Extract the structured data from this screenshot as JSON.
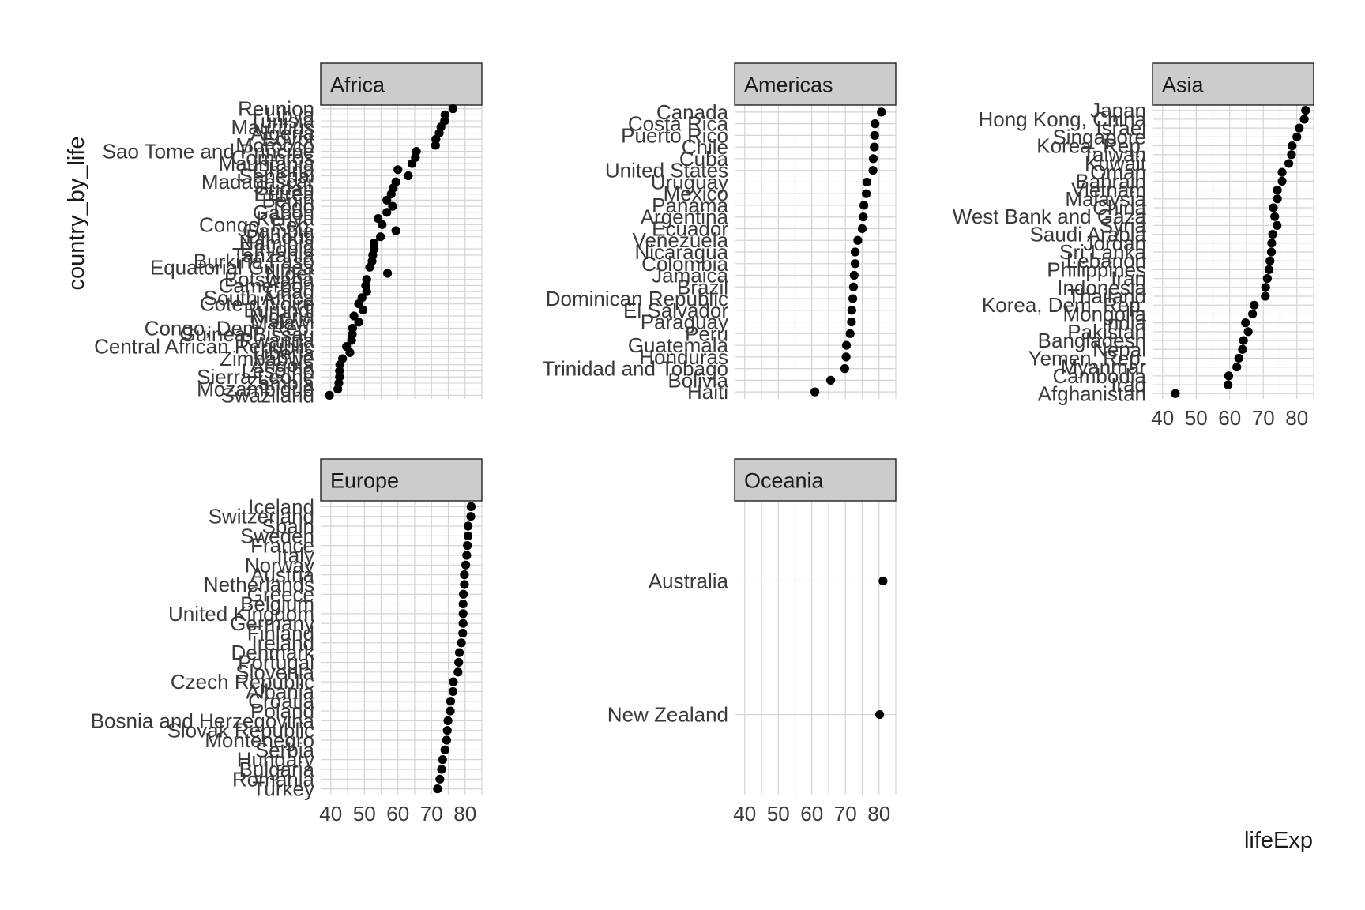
{
  "chart_data": {
    "type": "scatter",
    "facet_by": "continent",
    "ylabel": "country_by_life",
    "xlabel": "lifeExp",
    "xlim": [
      37,
      85
    ],
    "x_ticks": [
      40,
      50,
      60,
      70,
      80
    ],
    "grid": true,
    "panels": [
      {
        "name": "Africa",
        "points": [
          {
            "country": "Reunion",
            "lifeExp": 76.4
          },
          {
            "country": "Libya",
            "lifeExp": 74.0
          },
          {
            "country": "Tunisia",
            "lifeExp": 73.9
          },
          {
            "country": "Mauritius",
            "lifeExp": 72.8
          },
          {
            "country": "Algeria",
            "lifeExp": 72.3
          },
          {
            "country": "Egypt",
            "lifeExp": 71.3
          },
          {
            "country": "Morocco",
            "lifeExp": 71.2
          },
          {
            "country": "Sao Tome and Principe",
            "lifeExp": 65.5
          },
          {
            "country": "Comoros",
            "lifeExp": 65.2
          },
          {
            "country": "Mauritania",
            "lifeExp": 64.2
          },
          {
            "country": "Ghana",
            "lifeExp": 60.0
          },
          {
            "country": "Senegal",
            "lifeExp": 63.1
          },
          {
            "country": "Madagascar",
            "lifeExp": 59.4
          },
          {
            "country": "Sudan",
            "lifeExp": 58.6
          },
          {
            "country": "Eritrea",
            "lifeExp": 58.0
          },
          {
            "country": "Benin",
            "lifeExp": 56.7
          },
          {
            "country": "Togo",
            "lifeExp": 58.4
          },
          {
            "country": "Gabon",
            "lifeExp": 56.7
          },
          {
            "country": "Kenya",
            "lifeExp": 54.1
          },
          {
            "country": "Congo, Rep.",
            "lifeExp": 55.3
          },
          {
            "country": "Gambia",
            "lifeExp": 59.4
          },
          {
            "country": "Djibouti",
            "lifeExp": 54.8
          },
          {
            "country": "Namibia",
            "lifeExp": 52.9
          },
          {
            "country": "Ethiopia",
            "lifeExp": 52.9
          },
          {
            "country": "Tanzania",
            "lifeExp": 52.5
          },
          {
            "country": "Burkina Faso",
            "lifeExp": 52.3
          },
          {
            "country": "Equatorial Guinea",
            "lifeExp": 51.6
          },
          {
            "country": "Niger",
            "lifeExp": 56.9
          },
          {
            "country": "Botswana",
            "lifeExp": 50.7
          },
          {
            "country": "Cameroon",
            "lifeExp": 50.4
          },
          {
            "country": "Chad",
            "lifeExp": 50.7
          },
          {
            "country": "South Africa",
            "lifeExp": 49.3
          },
          {
            "country": "Cote d'Ivoire",
            "lifeExp": 48.3
          },
          {
            "country": "Burundi",
            "lifeExp": 49.6
          },
          {
            "country": "Nigeria",
            "lifeExp": 46.9
          },
          {
            "country": "Malawi",
            "lifeExp": 48.3
          },
          {
            "country": "Congo, Dem. Rep.",
            "lifeExp": 46.5
          },
          {
            "country": "Guinea-Bissau",
            "lifeExp": 46.4
          },
          {
            "country": "Rwanda",
            "lifeExp": 46.2
          },
          {
            "country": "Central African Republic",
            "lifeExp": 44.7
          },
          {
            "country": "Liberia",
            "lifeExp": 45.7
          },
          {
            "country": "Zimbabwe",
            "lifeExp": 43.5
          },
          {
            "country": "Angola",
            "lifeExp": 42.7
          },
          {
            "country": "Lesotho",
            "lifeExp": 42.6
          },
          {
            "country": "Sierra Leone",
            "lifeExp": 42.6
          },
          {
            "country": "Zambia",
            "lifeExp": 42.4
          },
          {
            "country": "Mozambique",
            "lifeExp": 42.1
          },
          {
            "country": "Swaziland",
            "lifeExp": 39.6
          }
        ]
      },
      {
        "name": "Americas",
        "points": [
          {
            "country": "Canada",
            "lifeExp": 80.7
          },
          {
            "country": "Costa Rica",
            "lifeExp": 78.8
          },
          {
            "country": "Puerto Rico",
            "lifeExp": 78.7
          },
          {
            "country": "Chile",
            "lifeExp": 78.6
          },
          {
            "country": "Cuba",
            "lifeExp": 78.3
          },
          {
            "country": "United States",
            "lifeExp": 78.2
          },
          {
            "country": "Uruguay",
            "lifeExp": 76.4
          },
          {
            "country": "Mexico",
            "lifeExp": 76.2
          },
          {
            "country": "Panama",
            "lifeExp": 75.5
          },
          {
            "country": "Argentina",
            "lifeExp": 75.3
          },
          {
            "country": "Ecuador",
            "lifeExp": 75.0
          },
          {
            "country": "Venezuela",
            "lifeExp": 73.7
          },
          {
            "country": "Nicaragua",
            "lifeExp": 72.9
          },
          {
            "country": "Colombia",
            "lifeExp": 72.9
          },
          {
            "country": "Jamaica",
            "lifeExp": 72.6
          },
          {
            "country": "Brazil",
            "lifeExp": 72.4
          },
          {
            "country": "Dominican Republic",
            "lifeExp": 72.2
          },
          {
            "country": "El Salvador",
            "lifeExp": 71.9
          },
          {
            "country": "Paraguay",
            "lifeExp": 71.8
          },
          {
            "country": "Peru",
            "lifeExp": 71.4
          },
          {
            "country": "Guatemala",
            "lifeExp": 70.3
          },
          {
            "country": "Honduras",
            "lifeExp": 70.2
          },
          {
            "country": "Trinidad and Tobago",
            "lifeExp": 69.8
          },
          {
            "country": "Bolivia",
            "lifeExp": 65.6
          },
          {
            "country": "Haiti",
            "lifeExp": 60.9
          }
        ]
      },
      {
        "name": "Asia",
        "points": [
          {
            "country": "Japan",
            "lifeExp": 82.6
          },
          {
            "country": "Hong Kong, China",
            "lifeExp": 82.2
          },
          {
            "country": "Israel",
            "lifeExp": 80.7
          },
          {
            "country": "Singapore",
            "lifeExp": 80.0
          },
          {
            "country": "Korea, Rep.",
            "lifeExp": 78.6
          },
          {
            "country": "Taiwan",
            "lifeExp": 78.4
          },
          {
            "country": "Kuwait",
            "lifeExp": 77.6
          },
          {
            "country": "Oman",
            "lifeExp": 75.6
          },
          {
            "country": "Bahrain",
            "lifeExp": 75.6
          },
          {
            "country": "Vietnam",
            "lifeExp": 74.2
          },
          {
            "country": "Malaysia",
            "lifeExp": 74.2
          },
          {
            "country": "China",
            "lifeExp": 73.0
          },
          {
            "country": "West Bank and Gaza",
            "lifeExp": 73.4
          },
          {
            "country": "Syria",
            "lifeExp": 74.1
          },
          {
            "country": "Saudi Arabia",
            "lifeExp": 72.8
          },
          {
            "country": "Jordan",
            "lifeExp": 72.5
          },
          {
            "country": "Sri Lanka",
            "lifeExp": 72.4
          },
          {
            "country": "Lebanon",
            "lifeExp": 72.0
          },
          {
            "country": "Philippines",
            "lifeExp": 71.7
          },
          {
            "country": "Iran",
            "lifeExp": 71.2
          },
          {
            "country": "Indonesia",
            "lifeExp": 70.7
          },
          {
            "country": "Thailand",
            "lifeExp": 70.6
          },
          {
            "country": "Korea, Dem. Rep.",
            "lifeExp": 67.3
          },
          {
            "country": "Mongolia",
            "lifeExp": 66.8
          },
          {
            "country": "India",
            "lifeExp": 64.7
          },
          {
            "country": "Pakistan",
            "lifeExp": 65.5
          },
          {
            "country": "Bangladesh",
            "lifeExp": 64.1
          },
          {
            "country": "Nepal",
            "lifeExp": 63.8
          },
          {
            "country": "Yemen, Rep.",
            "lifeExp": 62.7
          },
          {
            "country": "Myanmar",
            "lifeExp": 62.1
          },
          {
            "country": "Cambodia",
            "lifeExp": 59.7
          },
          {
            "country": "Iraq",
            "lifeExp": 59.5
          },
          {
            "country": "Afghanistan",
            "lifeExp": 43.8
          }
        ]
      },
      {
        "name": "Europe",
        "points": [
          {
            "country": "Iceland",
            "lifeExp": 81.8
          },
          {
            "country": "Switzerland",
            "lifeExp": 81.7
          },
          {
            "country": "Spain",
            "lifeExp": 80.9
          },
          {
            "country": "Sweden",
            "lifeExp": 80.9
          },
          {
            "country": "France",
            "lifeExp": 80.7
          },
          {
            "country": "Italy",
            "lifeExp": 80.5
          },
          {
            "country": "Norway",
            "lifeExp": 80.2
          },
          {
            "country": "Austria",
            "lifeExp": 79.8
          },
          {
            "country": "Netherlands",
            "lifeExp": 79.8
          },
          {
            "country": "Greece",
            "lifeExp": 79.5
          },
          {
            "country": "Belgium",
            "lifeExp": 79.4
          },
          {
            "country": "United Kingdom",
            "lifeExp": 79.4
          },
          {
            "country": "Germany",
            "lifeExp": 79.4
          },
          {
            "country": "Finland",
            "lifeExp": 79.3
          },
          {
            "country": "Ireland",
            "lifeExp": 78.9
          },
          {
            "country": "Denmark",
            "lifeExp": 78.3
          },
          {
            "country": "Portugal",
            "lifeExp": 78.1
          },
          {
            "country": "Slovenia",
            "lifeExp": 77.9
          },
          {
            "country": "Czech Republic",
            "lifeExp": 76.5
          },
          {
            "country": "Albania",
            "lifeExp": 76.4
          },
          {
            "country": "Croatia",
            "lifeExp": 75.7
          },
          {
            "country": "Poland",
            "lifeExp": 75.6
          },
          {
            "country": "Bosnia and Herzegovina",
            "lifeExp": 74.9
          },
          {
            "country": "Slovak Republic",
            "lifeExp": 74.7
          },
          {
            "country": "Montenegro",
            "lifeExp": 74.5
          },
          {
            "country": "Serbia",
            "lifeExp": 74.0
          },
          {
            "country": "Hungary",
            "lifeExp": 73.3
          },
          {
            "country": "Bulgaria",
            "lifeExp": 73.0
          },
          {
            "country": "Romania",
            "lifeExp": 72.5
          },
          {
            "country": "Turkey",
            "lifeExp": 71.8
          }
        ]
      },
      {
        "name": "Oceania",
        "points": [
          {
            "country": "Australia",
            "lifeExp": 81.2
          },
          {
            "country": "New Zealand",
            "lifeExp": 80.2
          }
        ]
      }
    ]
  }
}
